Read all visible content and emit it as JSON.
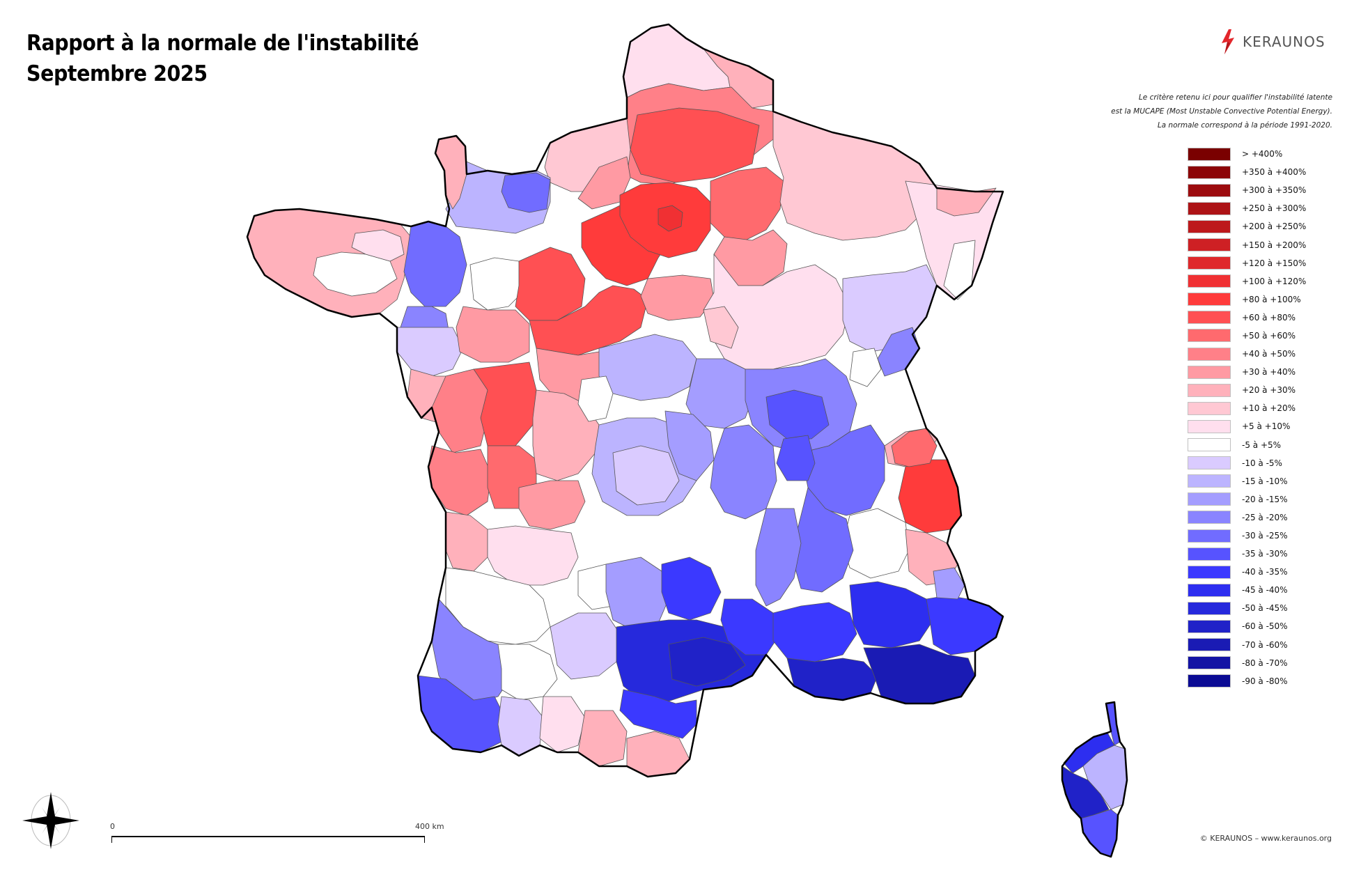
{
  "title": {
    "line1": "Rapport à la normale de l'instabilité",
    "line2": "Septembre 2025"
  },
  "logo": {
    "icon": "lightning-bolt-icon",
    "text": "KERAUNOS",
    "color": "#e3262b"
  },
  "note": {
    "line1": "Le critère retenu ici pour qualifier l'instabilité latente",
    "line2": "est la MUCAPE (Most Unstable Convective Potential Energy).",
    "line3": "La normale correspond à la période 1991-2020."
  },
  "legend": {
    "items": [
      {
        "label": "> +400%",
        "color": "#7a0000"
      },
      {
        "label": "+350 à +400%",
        "color": "#8c0507"
      },
      {
        "label": "+300 à +350%",
        "color": "#9c0c0f"
      },
      {
        "label": "+250 à +300%",
        "color": "#ad1316"
      },
      {
        "label": "+200 à +250%",
        "color": "#bd191c"
      },
      {
        "label": "+150 à +200%",
        "color": "#ce2024"
      },
      {
        "label": "+120 à +150%",
        "color": "#df282b"
      },
      {
        "label": "+100 à +120%",
        "color": "#f03033"
      },
      {
        "label": "+80 à +100%",
        "color": "#ff3b3b"
      },
      {
        "label": "+60 à +80%",
        "color": "#ff5053"
      },
      {
        "label": "+50 à +60%",
        "color": "#ff6a6e"
      },
      {
        "label": "+40 à +50%",
        "color": "#ff8088"
      },
      {
        "label": "+30 à +40%",
        "color": "#ff9aa3"
      },
      {
        "label": "+20 à +30%",
        "color": "#ffb1bb"
      },
      {
        "label": "+10 à +20%",
        "color": "#ffc8d3"
      },
      {
        "label": "+5 à +10%",
        "color": "#ffdfee"
      },
      {
        "label": "-5 à +5%",
        "color": "#ffffff"
      },
      {
        "label": "-10 à -5%",
        "color": "#dacbff"
      },
      {
        "label": "-15 à -10%",
        "color": "#bcb4ff"
      },
      {
        "label": "-20 à -15%",
        "color": "#a49dff"
      },
      {
        "label": "-25 à -20%",
        "color": "#8a84ff"
      },
      {
        "label": "-30 à -25%",
        "color": "#716cff"
      },
      {
        "label": "-35 à -30%",
        "color": "#5753ff"
      },
      {
        "label": "-40 à -35%",
        "color": "#3b39ff"
      },
      {
        "label": "-45 à -40%",
        "color": "#2d2ef0"
      },
      {
        "label": "-50 à -45%",
        "color": "#2629dc"
      },
      {
        "label": "-60 à -50%",
        "color": "#2022c8"
      },
      {
        "label": "-70 à -60%",
        "color": "#1a1bb4"
      },
      {
        "label": "-80 à -70%",
        "color": "#1313a4"
      },
      {
        "label": "-90 à -80%",
        "color": "#0b0b94"
      }
    ]
  },
  "scale": {
    "start": "0",
    "end": "400 km"
  },
  "compass": {
    "icon": "compass-rose-icon"
  },
  "copyright": "© KERAUNOS – www.keraunos.org",
  "map": {
    "regions": [
      {
        "name": "nord-pas-de-calais",
        "class": "+5 à +10%",
        "color": "#ffdfee"
      },
      {
        "name": "picardie",
        "class": "+40 à +50%",
        "color": "#ff8088"
      },
      {
        "name": "champagne",
        "class": "+50 à +60%",
        "color": "#ff6a6e"
      },
      {
        "name": "ile-de-france",
        "class": "+80 à +100%",
        "color": "#ff3b3b"
      },
      {
        "name": "haute-normandie",
        "class": "+10 à +20%",
        "color": "#ffc8d3"
      },
      {
        "name": "basse-normandie",
        "class": "-20 à -15%",
        "color": "#a49dff"
      },
      {
        "name": "bretagne",
        "class": "+20 à +30%",
        "color": "#ffb1bb"
      },
      {
        "name": "bretagne-est",
        "class": "-30 à -25%",
        "color": "#716cff"
      },
      {
        "name": "pays-de-la-loire",
        "class": "+40 à +50%",
        "color": "#ff8088"
      },
      {
        "name": "centre",
        "class": "+60 à +80%",
        "color": "#ff5053"
      },
      {
        "name": "lorraine-alsace",
        "class": "+10 à +20%",
        "color": "#ffc8d3"
      },
      {
        "name": "bourgogne",
        "class": "+5 à +10%",
        "color": "#ffdfee"
      },
      {
        "name": "franche-comte",
        "class": "-10 à -5%",
        "color": "#dacbff"
      },
      {
        "name": "poitou-charentes",
        "class": "+50 à +60%",
        "color": "#ff6a6e"
      },
      {
        "name": "limousin",
        "class": "+30 à +40%",
        "color": "#ff9aa3"
      },
      {
        "name": "auvergne",
        "class": "-15 à -10%",
        "color": "#bcb4ff"
      },
      {
        "name": "rhone-alpes",
        "class": "-30 à -25%",
        "color": "#716cff"
      },
      {
        "name": "savoie",
        "class": "+80 à +100%",
        "color": "#ff3b3b"
      },
      {
        "name": "aquitaine-nord",
        "class": "-5 à +5%",
        "color": "#ffffff"
      },
      {
        "name": "aquitaine-landes",
        "class": "-25 à -20%",
        "color": "#8a84ff"
      },
      {
        "name": "pyrenees-atlantiques",
        "class": "-35 à -30%",
        "color": "#5753ff"
      },
      {
        "name": "midi-pyrenees",
        "class": "-10 à -5%",
        "color": "#dacbff"
      },
      {
        "name": "languedoc",
        "class": "-50 à -45%",
        "color": "#2629dc"
      },
      {
        "name": "paca",
        "class": "-60 à -50%",
        "color": "#2022c8"
      },
      {
        "name": "alpes-sud",
        "class": "-5 à +5%",
        "color": "#ffffff"
      },
      {
        "name": "corse",
        "class": "-40 à -35%",
        "color": "#3b39ff"
      }
    ]
  }
}
